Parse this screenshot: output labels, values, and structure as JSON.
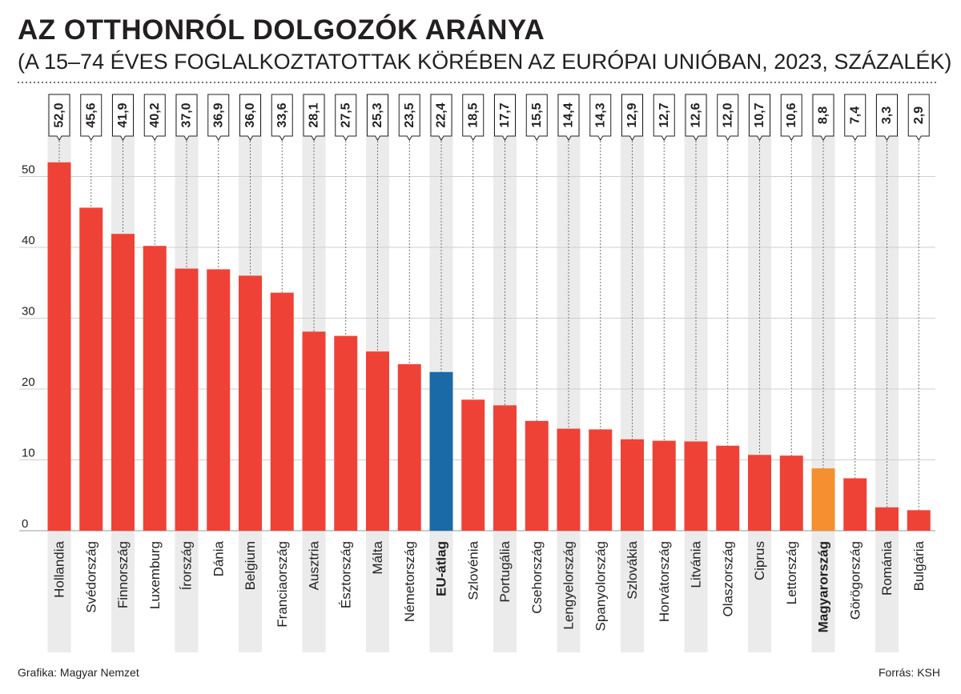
{
  "title": "AZ OTTHONRÓL DOLGOZÓK ARÁNYA",
  "subtitle": "(A 15–74 ÉVES FOGLALKOZTATOTTAK KÖRÉBEN AZ EURÓPAI UNIÓBAN, 2023, SZÁZALÉK)",
  "credit_left": "Grafika: Magyar Nemzet",
  "credit_right": "Forrás: KSH",
  "colors": {
    "bar": "#ef4236",
    "eu_average": "#1a6aa8",
    "hungary": "#f58f2f",
    "stripe": "#ebebeb",
    "grid": "#cfcfcf",
    "text": "#231f20"
  },
  "chart_data": {
    "type": "bar",
    "ylim": [
      0,
      55
    ],
    "yticks": [
      0,
      10,
      20,
      30,
      40,
      50
    ],
    "categories": [
      "Hollandia",
      "Svédország",
      "Finnország",
      "Luxemburg",
      "Írország",
      "Dánia",
      "Belgium",
      "Franciaország",
      "Ausztria",
      "Észtország",
      "Málta",
      "Németország",
      "EU-átlag",
      "Szlovénia",
      "Portugália",
      "Csehország",
      "Lengyelország",
      "Spanyolország",
      "Szlovákia",
      "Horvátország",
      "Litvánia",
      "Olaszország",
      "Ciprus",
      "Lettország",
      "Magyarország",
      "Görögország",
      "Románia",
      "Bulgária"
    ],
    "values": [
      52.0,
      45.6,
      41.9,
      40.2,
      37.0,
      36.9,
      36.0,
      33.6,
      28.1,
      27.5,
      25.3,
      23.5,
      22.4,
      18.5,
      17.7,
      15.5,
      14.4,
      14.3,
      12.9,
      12.7,
      12.6,
      12.0,
      10.7,
      10.6,
      8.8,
      7.4,
      3.3,
      2.9
    ],
    "value_labels": [
      "52,0",
      "45,6",
      "41,9",
      "40,2",
      "37,0",
      "36,9",
      "36,0",
      "33,6",
      "28,1",
      "27,5",
      "25,3",
      "23,5",
      "22,4",
      "18,5",
      "17,7",
      "15,5",
      "14,4",
      "14,3",
      "12,9",
      "12,7",
      "12,6",
      "12,0",
      "10,7",
      "10,6",
      "8,8",
      "7,4",
      "3,3",
      "2,9"
    ],
    "highlight": {
      "EU-átlag": "eu_average",
      "Magyarország": "hungary"
    },
    "bold_categories": [
      "EU-átlag",
      "Magyarország"
    ]
  }
}
